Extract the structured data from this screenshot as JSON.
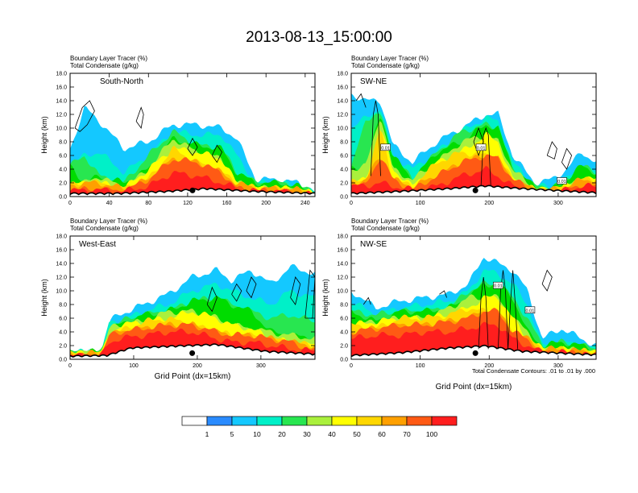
{
  "title": "2013-08-13_15:00:00",
  "legend_colors": [
    "#ffffff",
    "#2a8bff",
    "#14c8ff",
    "#00f0c8",
    "#28e650",
    "#00dc00",
    "#aaf03c",
    "#ffff00",
    "#ffd700",
    "#ffa000",
    "#ff5a14",
    "#ff1e1e"
  ],
  "colorbar": {
    "labels": [
      "1",
      "5",
      "10",
      "20",
      "30",
      "40",
      "50",
      "60",
      "70",
      "100"
    ]
  },
  "contour_note": "Total Condensate Contours: .01 to .01 by .000",
  "contour_label": "0.01",
  "chart_data": [
    {
      "type": "heatmap",
      "field_labels": [
        "Boundary Layer Tracer   (%)",
        "Total Condensate   (g/kg)"
      ],
      "panel_label": "South-North",
      "ylabel": "Height (km)",
      "xlabel": "",
      "xlim": [
        0,
        250
      ],
      "ylim": [
        0,
        18
      ],
      "xticks": [
        "0",
        "40",
        "80",
        "120",
        "160",
        "200",
        "240"
      ],
      "xtick_values": [
        0,
        40,
        80,
        120,
        160,
        200,
        240
      ],
      "yticks": [
        "0.0",
        "2.0",
        "4.0",
        "6.0",
        "8.0",
        "10.0",
        "12.0",
        "14.0",
        "16.0",
        "18.0"
      ],
      "ytick_values": [
        0,
        2,
        4,
        6,
        8,
        10,
        12,
        14,
        16,
        18
      ],
      "marker_x": 125
    },
    {
      "type": "heatmap",
      "field_labels": [
        "Boundary Layer Tracer   (%)",
        "Total Condensate   (g/kg)"
      ],
      "panel_label": "SW-NE",
      "ylabel": "Height (km)",
      "xlabel": "",
      "xlim": [
        0,
        355
      ],
      "ylim": [
        0,
        18
      ],
      "xticks": [
        "0",
        "100",
        "200",
        "300"
      ],
      "xtick_values": [
        0,
        100,
        200,
        300
      ],
      "yticks": [
        "0.0",
        "2.0",
        "4.0",
        "6.0",
        "8.0",
        "10.0",
        "12.0",
        "14.0",
        "16.0",
        "18.0"
      ],
      "ytick_values": [
        0,
        2,
        4,
        6,
        8,
        10,
        12,
        14,
        16,
        18
      ],
      "marker_x": 180
    },
    {
      "type": "heatmap",
      "field_labels": [
        "Boundary Layer Tracer   (%)",
        "Total Condensate   (g/kg)"
      ],
      "panel_label": "West-East",
      "ylabel": "Height (km)",
      "xlabel": "Grid Point (dx=15km)",
      "xlim": [
        0,
        385
      ],
      "ylim": [
        0,
        18
      ],
      "xticks": [
        "0",
        "100",
        "200",
        "300"
      ],
      "xtick_values": [
        0,
        100,
        200,
        300
      ],
      "yticks": [
        "0.0",
        "2.0",
        "4.0",
        "6.0",
        "8.0",
        "10.0",
        "12.0",
        "14.0",
        "16.0",
        "18.0"
      ],
      "ytick_values": [
        0,
        2,
        4,
        6,
        8,
        10,
        12,
        14,
        16,
        18
      ],
      "marker_x": 192
    },
    {
      "type": "heatmap",
      "field_labels": [
        "Boundary Layer Tracer   (%)",
        "Total Condensate   (g/kg)"
      ],
      "panel_label": "NW-SE",
      "ylabel": "Height (km)",
      "xlabel": "Grid Point (dx=15km)",
      "xlim": [
        0,
        355
      ],
      "ylim": [
        0,
        18
      ],
      "xticks": [
        "0",
        "100",
        "200",
        "300"
      ],
      "xtick_values": [
        0,
        100,
        200,
        300
      ],
      "yticks": [
        "0.0",
        "2.0",
        "4.0",
        "6.0",
        "8.0",
        "10.0",
        "12.0",
        "14.0",
        "16.0",
        "18.0"
      ],
      "ytick_values": [
        0,
        2,
        4,
        6,
        8,
        10,
        12,
        14,
        16,
        18
      ],
      "marker_x": 180
    }
  ]
}
